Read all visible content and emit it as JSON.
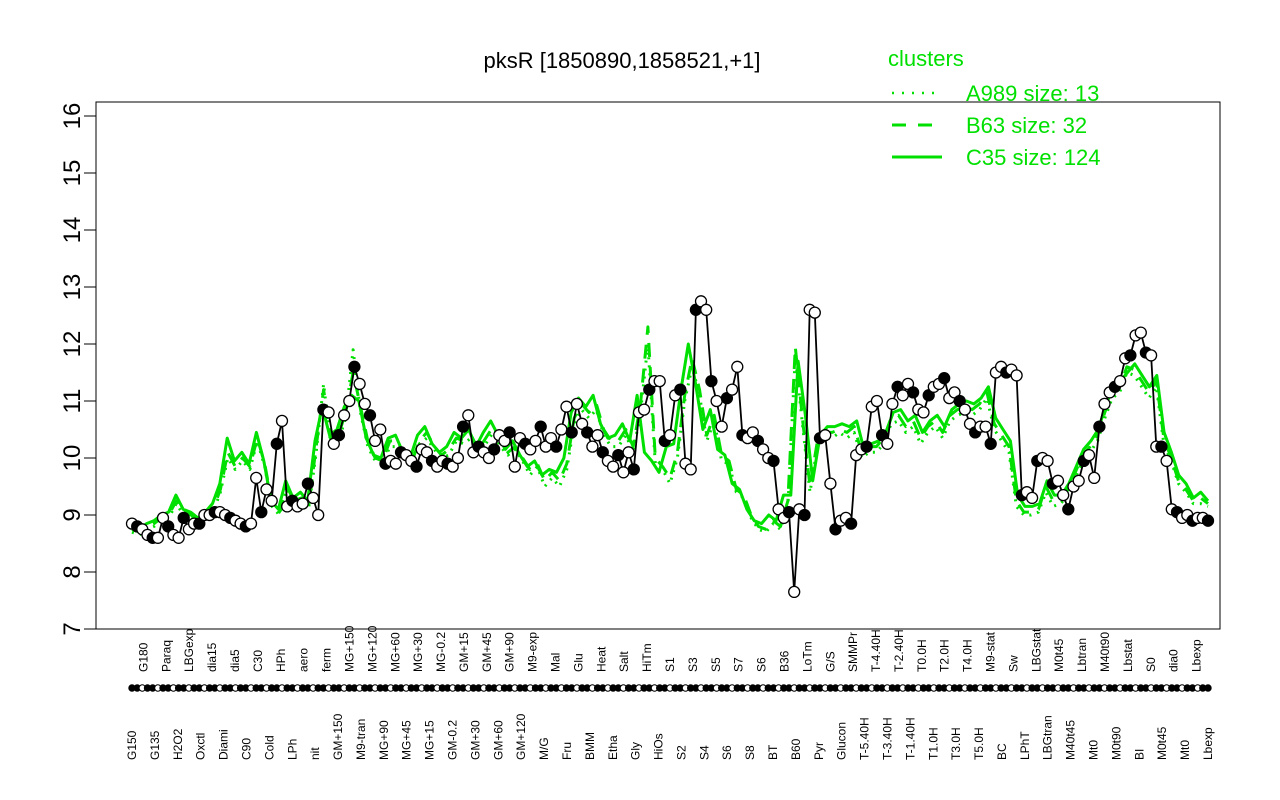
{
  "chart_data": {
    "type": "line",
    "title": "pksR [1850890,1858521,+1]",
    "xlabel": "",
    "ylabel": "",
    "ylim": [
      7,
      16
    ],
    "yticks": [
      7,
      8,
      9,
      10,
      11,
      12,
      13,
      14,
      15,
      16
    ],
    "legend": {
      "title": "clusters",
      "placement": "top-right",
      "entries": [
        {
          "label": "A989 size: 13",
          "style": "dotted"
        },
        {
          "label": "B63 size: 32",
          "style": "dashed"
        },
        {
          "label": "C35 size: 124",
          "style": "solid"
        }
      ]
    },
    "color": "#00e000",
    "x_tick_labels": [
      "G150",
      "G180",
      "G135",
      "Paraq",
      "H2O2",
      "LBGexp",
      "Oxctl",
      "dia15",
      "Diami",
      "dia5",
      "C90",
      "C30",
      "Cold",
      "HPh",
      "LPh",
      "aero",
      "nit",
      "ferm",
      "GM+150",
      "MG+150",
      "M9-tran",
      "MG+120",
      "MG+90",
      "MG+60",
      "MG+45",
      "MG+30",
      "MG+15",
      "MG-0.2",
      "GM-0.2",
      "GM+15",
      "GM+30",
      "GM+45",
      "GM+60",
      "GM+90",
      "GM+120",
      "M9-exp",
      "M/G",
      "Mal",
      "Fru",
      "Glu",
      "BMM",
      "Heat",
      "Etha",
      "Salt",
      "Gly",
      "HiTm",
      "HiOs",
      "S1",
      "S2",
      "S3",
      "S4",
      "S5",
      "S6",
      "S7",
      "S8",
      "S6",
      "BT",
      "B36",
      "B60",
      "LoTm",
      "Pyr",
      "G/S",
      "Glucon",
      "SMMPr",
      "T-5.40H",
      "T-4.40H",
      "T-3.40H",
      "T-2.40H",
      "T-1.40H",
      "T0.0H",
      "T1.0H",
      "T2.0H",
      "T3.0H",
      "T4.0H",
      "T5.0H",
      "M9-stat",
      "BC",
      "Sw",
      "LPhT",
      "LBGstat",
      "LBGtran",
      "M0t45",
      "M40t45",
      "Lbtran",
      "Mt0",
      "M40t90",
      "M0t90",
      "Lbstat",
      "BI",
      "S0",
      "M0t45",
      "dia0",
      "Mt0",
      "Lbexp",
      "Lbexp"
    ],
    "points": [
      [
        1,
        8.85
      ],
      [
        2,
        8.8
      ],
      [
        3,
        8.75
      ],
      [
        4,
        8.65
      ],
      [
        5,
        8.6
      ],
      [
        6,
        8.6
      ],
      [
        7,
        8.95
      ],
      [
        8,
        8.8
      ],
      [
        9,
        8.65
      ],
      [
        10,
        8.6
      ],
      [
        11,
        8.95
      ],
      [
        12,
        8.75
      ],
      [
        13,
        8.85
      ],
      [
        14,
        8.85
      ],
      [
        15,
        9.0
      ],
      [
        16,
        9.0
      ],
      [
        17,
        9.05
      ],
      [
        18,
        9.05
      ],
      [
        19,
        9.0
      ],
      [
        20,
        8.95
      ],
      [
        21,
        8.9
      ],
      [
        22,
        8.85
      ],
      [
        23,
        8.8
      ],
      [
        24,
        8.85
      ],
      [
        25,
        9.65
      ],
      [
        26,
        9.05
      ],
      [
        27,
        9.45
      ],
      [
        28,
        9.25
      ],
      [
        29,
        10.25
      ],
      [
        30,
        10.65
      ],
      [
        31,
        9.15
      ],
      [
        32,
        9.25
      ],
      [
        33,
        9.15
      ],
      [
        34,
        9.2
      ],
      [
        35,
        9.55
      ],
      [
        36,
        9.3
      ],
      [
        37,
        9.0
      ],
      [
        38,
        10.85
      ],
      [
        39,
        10.8
      ],
      [
        40,
        10.25
      ],
      [
        41,
        10.4
      ],
      [
        42,
        10.75
      ],
      [
        43,
        11.0
      ],
      [
        44,
        11.6
      ],
      [
        45,
        11.3
      ],
      [
        46,
        10.95
      ],
      [
        47,
        10.75
      ],
      [
        48,
        10.3
      ],
      [
        49,
        10.5
      ],
      [
        50,
        9.9
      ],
      [
        51,
        9.95
      ],
      [
        52,
        9.9
      ],
      [
        53,
        10.1
      ],
      [
        54,
        10.05
      ],
      [
        55,
        9.95
      ],
      [
        56,
        9.85
      ],
      [
        57,
        10.15
      ],
      [
        58,
        10.1
      ],
      [
        59,
        9.95
      ],
      [
        60,
        9.85
      ],
      [
        61,
        9.95
      ],
      [
        62,
        9.9
      ],
      [
        63,
        9.85
      ],
      [
        64,
        10.0
      ],
      [
        65,
        10.55
      ],
      [
        66,
        10.75
      ],
      [
        67,
        10.1
      ],
      [
        68,
        10.2
      ],
      [
        69,
        10.1
      ],
      [
        70,
        10.0
      ],
      [
        71,
        10.15
      ],
      [
        72,
        10.4
      ],
      [
        73,
        10.3
      ],
      [
        74,
        10.45
      ],
      [
        75,
        9.85
      ],
      [
        76,
        10.35
      ],
      [
        77,
        10.25
      ],
      [
        78,
        10.15
      ],
      [
        79,
        10.3
      ],
      [
        80,
        10.55
      ],
      [
        81,
        10.2
      ],
      [
        82,
        10.35
      ],
      [
        83,
        10.2
      ],
      [
        84,
        10.5
      ],
      [
        85,
        10.9
      ],
      [
        86,
        10.45
      ],
      [
        87,
        10.95
      ],
      [
        88,
        10.6
      ],
      [
        89,
        10.45
      ],
      [
        90,
        10.2
      ],
      [
        91,
        10.4
      ],
      [
        92,
        10.1
      ],
      [
        93,
        9.95
      ],
      [
        94,
        9.85
      ],
      [
        95,
        10.05
      ],
      [
        96,
        9.75
      ],
      [
        97,
        10.1
      ],
      [
        98,
        9.8
      ],
      [
        99,
        10.8
      ],
      [
        100,
        10.85
      ],
      [
        101,
        11.2
      ],
      [
        102,
        11.35
      ],
      [
        103,
        11.35
      ],
      [
        104,
        10.3
      ],
      [
        105,
        10.4
      ],
      [
        106,
        11.1
      ],
      [
        107,
        11.2
      ],
      [
        108,
        9.9
      ],
      [
        109,
        9.8
      ],
      [
        110,
        12.6
      ],
      [
        111,
        12.75
      ],
      [
        112,
        12.6
      ],
      [
        113,
        11.35
      ],
      [
        114,
        11.0
      ],
      [
        115,
        10.55
      ],
      [
        116,
        11.05
      ],
      [
        117,
        11.2
      ],
      [
        118,
        11.6
      ],
      [
        119,
        10.4
      ],
      [
        120,
        10.35
      ],
      [
        121,
        10.45
      ],
      [
        122,
        10.3
      ],
      [
        123,
        10.15
      ],
      [
        124,
        10.0
      ],
      [
        125,
        9.95
      ],
      [
        126,
        9.1
      ],
      [
        127,
        8.95
      ],
      [
        128,
        9.05
      ],
      [
        129,
        7.65
      ],
      [
        130,
        9.1
      ],
      [
        131,
        9.0
      ],
      [
        132,
        12.6
      ],
      [
        133,
        12.55
      ],
      [
        134,
        10.35
      ],
      [
        135,
        10.4
      ],
      [
        136,
        9.55
      ],
      [
        137,
        8.75
      ],
      [
        138,
        8.9
      ],
      [
        139,
        8.95
      ],
      [
        140,
        8.85
      ],
      [
        141,
        10.05
      ],
      [
        142,
        10.15
      ],
      [
        143,
        10.2
      ],
      [
        144,
        10.9
      ],
      [
        145,
        11.0
      ],
      [
        146,
        10.4
      ],
      [
        147,
        10.25
      ],
      [
        148,
        10.95
      ],
      [
        149,
        11.25
      ],
      [
        150,
        11.1
      ],
      [
        151,
        11.3
      ],
      [
        152,
        11.15
      ],
      [
        153,
        10.85
      ],
      [
        154,
        10.8
      ],
      [
        155,
        11.1
      ],
      [
        156,
        11.25
      ],
      [
        157,
        11.3
      ],
      [
        158,
        11.4
      ],
      [
        159,
        11.05
      ],
      [
        160,
        11.15
      ],
      [
        161,
        11.0
      ],
      [
        162,
        10.85
      ],
      [
        163,
        10.6
      ],
      [
        164,
        10.45
      ],
      [
        165,
        10.55
      ],
      [
        166,
        10.55
      ],
      [
        167,
        10.25
      ],
      [
        168,
        11.5
      ],
      [
        169,
        11.6
      ],
      [
        170,
        11.5
      ],
      [
        171,
        11.55
      ],
      [
        172,
        11.45
      ],
      [
        173,
        9.35
      ],
      [
        174,
        9.4
      ],
      [
        175,
        9.3
      ],
      [
        176,
        9.95
      ],
      [
        177,
        10.0
      ],
      [
        178,
        9.95
      ],
      [
        179,
        9.55
      ],
      [
        180,
        9.6
      ],
      [
        181,
        9.35
      ],
      [
        182,
        9.1
      ],
      [
        183,
        9.5
      ],
      [
        184,
        9.6
      ],
      [
        185,
        9.95
      ],
      [
        186,
        10.05
      ],
      [
        187,
        9.65
      ],
      [
        188,
        10.55
      ],
      [
        189,
        10.95
      ],
      [
        190,
        11.15
      ],
      [
        191,
        11.25
      ],
      [
        192,
        11.35
      ],
      [
        193,
        11.75
      ],
      [
        194,
        11.8
      ],
      [
        195,
        12.15
      ],
      [
        196,
        12.2
      ],
      [
        197,
        11.85
      ],
      [
        198,
        11.8
      ],
      [
        199,
        10.2
      ],
      [
        200,
        10.2
      ],
      [
        201,
        9.95
      ],
      [
        202,
        9.1
      ],
      [
        203,
        9.05
      ],
      [
        204,
        8.95
      ],
      [
        205,
        9.0
      ],
      [
        206,
        8.9
      ],
      [
        207,
        8.95
      ],
      [
        208,
        8.95
      ],
      [
        209,
        8.9
      ]
    ],
    "series": [
      {
        "style": "solid",
        "values": [
          8.8,
          8.75,
          8.85,
          8.9,
          9.0,
          9.05,
          9.35,
          9.1,
          9.05,
          8.95,
          9.05,
          9.2,
          9.55,
          10.35,
          9.95,
          10.1,
          9.9,
          10.45,
          9.95,
          9.25,
          9.1,
          9.6,
          9.3,
          9.4,
          9.25,
          10.3,
          10.9,
          10.4,
          10.5,
          10.9,
          11.1,
          11.0,
          10.35,
          10.05,
          10.0,
          10.35,
          10.4,
          10.1,
          10.0,
          10.4,
          10.55,
          10.25,
          10.1,
          10.2,
          10.45,
          10.35,
          10.5,
          10.2,
          10.45,
          10.65,
          10.4,
          10.15,
          10.3,
          10.05,
          9.85,
          9.95,
          9.7,
          9.8,
          9.75,
          10.0,
          10.8,
          11.05,
          10.9,
          11.1,
          10.6,
          10.35,
          10.4,
          10.6,
          10.3,
          11.1,
          10.1,
          9.95,
          9.75,
          10.2,
          10.25,
          11.2,
          12.0,
          11.3,
          10.5,
          10.85,
          10.15,
          10.05,
          9.55,
          9.45,
          9.1,
          8.9,
          8.85,
          9.0,
          8.9,
          9.35,
          9.35,
          11.7,
          10.75,
          9.6,
          10.4,
          10.55,
          10.55,
          10.6,
          10.55,
          10.65,
          10.15,
          10.25,
          10.3,
          10.45,
          10.8,
          10.85,
          10.65,
          10.75,
          10.45,
          10.65,
          10.75,
          10.55,
          10.85,
          10.95,
          11.0,
          10.95,
          11.05,
          11.25,
          10.7,
          10.5,
          10.3,
          9.35,
          9.15,
          9.15,
          9.2,
          9.6,
          9.35,
          9.35,
          9.55,
          9.85,
          10.15,
          10.3,
          10.5,
          10.9,
          11.25,
          11.35,
          11.5,
          11.65,
          11.45,
          11.25,
          11.45,
          10.45,
          10.1,
          9.7,
          9.55,
          9.3,
          9.4,
          9.25
        ]
      },
      {
        "style": "dashed",
        "values": [
          8.75,
          8.7,
          8.8,
          8.85,
          8.95,
          9.0,
          9.25,
          9.05,
          9.0,
          8.9,
          9.0,
          9.1,
          9.45,
          10.1,
          9.85,
          10.0,
          9.85,
          10.35,
          9.9,
          9.2,
          9.05,
          9.5,
          9.25,
          9.3,
          9.2,
          10.2,
          11.2,
          10.3,
          10.4,
          10.8,
          11.5,
          10.9,
          10.3,
          10.0,
          9.95,
          10.3,
          10.3,
          10.05,
          9.95,
          10.3,
          10.45,
          10.2,
          10.05,
          10.15,
          10.35,
          10.3,
          10.4,
          10.15,
          10.35,
          10.55,
          10.3,
          10.1,
          10.2,
          10.0,
          9.8,
          9.9,
          9.6,
          9.75,
          9.6,
          9.9,
          10.7,
          10.95,
          10.8,
          10.95,
          10.5,
          10.3,
          10.3,
          10.5,
          10.2,
          10.95,
          12.3,
          10.0,
          9.85,
          9.65,
          10.1,
          11.1,
          11.75,
          11.2,
          10.4,
          10.75,
          10.05,
          9.95,
          9.45,
          9.35,
          9.0,
          8.8,
          8.75,
          8.9,
          8.8,
          9.25,
          11.95,
          10.65,
          9.5,
          10.3,
          10.45,
          10.45,
          10.5,
          10.45,
          10.55,
          10.1,
          10.2,
          10.2,
          10.35,
          10.7,
          10.75,
          10.55,
          10.65,
          10.35,
          10.55,
          10.65,
          10.45,
          10.75,
          10.85,
          10.9,
          10.85,
          10.95,
          11.15,
          10.6,
          10.4,
          10.2,
          9.25,
          9.05,
          9.05,
          9.1,
          9.5,
          9.25,
          9.25,
          9.45,
          9.75,
          10.05,
          10.2,
          10.4,
          10.8,
          11.15,
          11.25,
          11.6,
          11.55,
          11.35,
          11.15,
          11.35,
          10.35,
          10.0,
          9.6,
          9.45,
          9.25,
          9.3,
          9.2
        ]
      },
      {
        "style": "dotted",
        "values": [
          8.7,
          8.65,
          8.75,
          8.8,
          8.9,
          8.95,
          9.2,
          9.0,
          8.95,
          8.85,
          8.95,
          9.05,
          9.4,
          10.0,
          9.8,
          9.95,
          9.8,
          10.3,
          9.85,
          9.15,
          9.0,
          9.45,
          9.2,
          9.25,
          9.15,
          10.1,
          11.3,
          10.2,
          10.3,
          10.7,
          11.9,
          10.8,
          10.2,
          9.95,
          9.9,
          10.2,
          10.2,
          10.0,
          9.9,
          10.25,
          10.35,
          10.15,
          10.0,
          10.05,
          10.3,
          10.25,
          10.35,
          10.1,
          10.25,
          10.45,
          10.2,
          10.05,
          10.15,
          9.95,
          9.7,
          9.85,
          9.5,
          9.65,
          9.5,
          9.8,
          10.6,
          10.85,
          10.7,
          10.85,
          10.4,
          10.2,
          10.2,
          10.4,
          10.1,
          10.8,
          12.0,
          9.9,
          9.8,
          9.55,
          10.0,
          11.0,
          11.6,
          11.1,
          10.3,
          10.65,
          9.95,
          9.9,
          9.4,
          9.3,
          8.95,
          8.75,
          8.7,
          8.85,
          8.75,
          9.15,
          11.8,
          10.55,
          9.4,
          10.2,
          10.35,
          10.35,
          10.45,
          10.35,
          10.45,
          10.0,
          10.1,
          10.1,
          10.25,
          10.6,
          10.65,
          10.45,
          10.55,
          10.25,
          10.45,
          10.55,
          10.35,
          10.65,
          10.75,
          10.8,
          10.75,
          10.85,
          11.05,
          10.5,
          10.3,
          10.1,
          9.15,
          9.0,
          9.0,
          9.05,
          9.4,
          9.15,
          9.2,
          9.35,
          9.65,
          9.95,
          10.1,
          10.3,
          10.7,
          11.05,
          11.15,
          11.5,
          11.45,
          11.25,
          11.05,
          11.25,
          10.25,
          9.95,
          9.55,
          9.4,
          9.2,
          9.2,
          9.15
        ]
      }
    ]
  }
}
